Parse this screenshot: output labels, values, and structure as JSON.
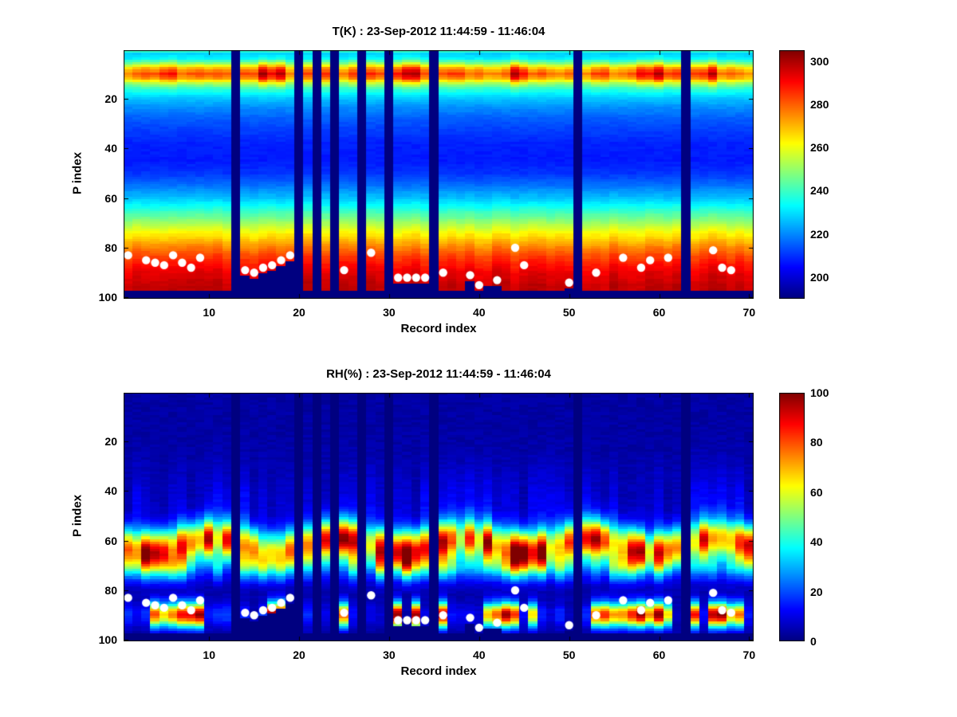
{
  "figure": {
    "background": "#ffffff",
    "text_color": "#000000",
    "marker_color": "#ffffff"
  },
  "chart_data": [
    {
      "type": "heatmap",
      "variable": "temperature",
      "title": "T(K) : 23-Sep-2012 11:44:59 - 11:46:04",
      "xlabel": "Record index",
      "ylabel": "P index",
      "x_range": [
        1,
        70
      ],
      "y_range": [
        1,
        100
      ],
      "y_axis_direction": "reversed",
      "xticks": [
        10,
        20,
        30,
        40,
        50,
        60,
        70
      ],
      "yticks": [
        20,
        40,
        60,
        80,
        100
      ],
      "colormap": "jet",
      "clim": [
        190,
        305
      ],
      "colorbar_ticks": [
        200,
        220,
        240,
        260,
        280,
        300
      ],
      "grid": false,
      "missing_records": [
        13,
        20,
        22,
        24,
        27,
        30,
        35,
        51,
        63
      ],
      "surface_markers": [
        [
          1,
          83
        ],
        [
          3,
          85
        ],
        [
          4,
          86
        ],
        [
          5,
          87
        ],
        [
          6,
          83
        ],
        [
          7,
          86
        ],
        [
          8,
          88
        ],
        [
          9,
          84
        ],
        [
          14,
          89
        ],
        [
          15,
          90
        ],
        [
          16,
          88
        ],
        [
          17,
          87
        ],
        [
          18,
          85
        ],
        [
          19,
          83
        ],
        [
          25,
          89
        ],
        [
          28,
          82
        ],
        [
          31,
          92
        ],
        [
          32,
          92
        ],
        [
          33,
          92
        ],
        [
          34,
          92
        ],
        [
          36,
          90
        ],
        [
          39,
          91
        ],
        [
          40,
          95
        ],
        [
          42,
          93
        ],
        [
          44,
          80
        ],
        [
          45,
          87
        ],
        [
          50,
          94
        ],
        [
          53,
          90
        ],
        [
          56,
          84
        ],
        [
          58,
          88
        ],
        [
          59,
          85
        ],
        [
          61,
          84
        ],
        [
          66,
          81
        ],
        [
          67,
          88
        ],
        [
          68,
          89
        ]
      ],
      "surface_default_cutoff": 97,
      "surface_cutoff_overrides": {
        "14": 91,
        "15": 92,
        "16": 90,
        "17": 89,
        "18": 87,
        "19": 85,
        "31": 94,
        "32": 94,
        "33": 94,
        "34": 94,
        "39": 93,
        "41": 95,
        "42": 95,
        "50": 96
      },
      "profile": [
        [
          1,
          238
        ],
        [
          2,
          228
        ],
        [
          4,
          232
        ],
        [
          6,
          248
        ],
        [
          8,
          268
        ],
        [
          10,
          280
        ],
        [
          12,
          272
        ],
        [
          14,
          252
        ],
        [
          16,
          240
        ],
        [
          18,
          232
        ],
        [
          20,
          227
        ],
        [
          24,
          220
        ],
        [
          28,
          215
        ],
        [
          32,
          212
        ],
        [
          38,
          208
        ],
        [
          45,
          207
        ],
        [
          50,
          210
        ],
        [
          55,
          217
        ],
        [
          60,
          226
        ],
        [
          65,
          238
        ],
        [
          70,
          251
        ],
        [
          75,
          264
        ],
        [
          80,
          276
        ],
        [
          85,
          286
        ],
        [
          90,
          293
        ],
        [
          95,
          297
        ],
        [
          100,
          298
        ]
      ],
      "warm_band": {
        "center": 10,
        "sigma": 3.5,
        "amp_range": [
          -6,
          8
        ],
        "extra": 14,
        "records": [
          5,
          6,
          16,
          17,
          18,
          31,
          32,
          33,
          44,
          45,
          58,
          59,
          60,
          66
        ]
      },
      "surface_thermal_noise": {
        "center": 86,
        "sigma": 16,
        "amp": 3
      },
      "cell_noise": 1.2
    },
    {
      "type": "heatmap",
      "variable": "relative_humidity",
      "title": "RH(%) : 23-Sep-2012 11:44:59 - 11:46:04",
      "xlabel": "Record index",
      "ylabel": "P index",
      "x_range": [
        1,
        70
      ],
      "y_range": [
        1,
        100
      ],
      "y_axis_direction": "reversed",
      "xticks": [
        10,
        20,
        30,
        40,
        50,
        60,
        70
      ],
      "yticks": [
        20,
        40,
        60,
        80,
        100
      ],
      "colormap": "jet",
      "clim": [
        0,
        100
      ],
      "colorbar_ticks": [
        0,
        20,
        40,
        60,
        80,
        100
      ],
      "grid": false,
      "missing_records": [
        13,
        20,
        22,
        24,
        27,
        30,
        35,
        51,
        63
      ],
      "surface_markers": [
        [
          1,
          83
        ],
        [
          3,
          85
        ],
        [
          4,
          86
        ],
        [
          5,
          87
        ],
        [
          6,
          83
        ],
        [
          7,
          86
        ],
        [
          8,
          88
        ],
        [
          9,
          84
        ],
        [
          14,
          89
        ],
        [
          15,
          90
        ],
        [
          16,
          88
        ],
        [
          17,
          87
        ],
        [
          18,
          85
        ],
        [
          19,
          83
        ],
        [
          25,
          89
        ],
        [
          28,
          82
        ],
        [
          31,
          92
        ],
        [
          32,
          92
        ],
        [
          33,
          92
        ],
        [
          34,
          92
        ],
        [
          36,
          90
        ],
        [
          39,
          91
        ],
        [
          40,
          95
        ],
        [
          42,
          93
        ],
        [
          44,
          80
        ],
        [
          45,
          87
        ],
        [
          50,
          94
        ],
        [
          53,
          90
        ],
        [
          56,
          84
        ],
        [
          58,
          88
        ],
        [
          59,
          85
        ],
        [
          61,
          84
        ],
        [
          66,
          81
        ],
        [
          67,
          88
        ],
        [
          68,
          89
        ]
      ],
      "surface_default_cutoff": 97,
      "surface_cutoff_overrides": {
        "14": 91,
        "15": 92,
        "16": 90,
        "17": 89,
        "18": 87,
        "19": 85,
        "31": 94,
        "32": 94,
        "33": 94,
        "34": 94,
        "39": 93,
        "41": 95,
        "42": 95,
        "50": 96
      },
      "base_rh": 2,
      "upper_texture": {
        "center": 46,
        "sigma": 11,
        "amp_max": 10
      },
      "mid_band": {
        "center": 62,
        "center_wobble": 2.5,
        "sigma": 5.5,
        "amp_range": [
          48,
          95
        ]
      },
      "shoulder_band": {
        "center": 71,
        "sigma": 4,
        "amp_range": [
          5,
          38
        ]
      },
      "surface_band": {
        "center": 90,
        "sigma": 3.5,
        "amp_range": [
          60,
          100
        ],
        "dry_amp_max": 15,
        "records": [
          4,
          5,
          6,
          7,
          8,
          9,
          17,
          18,
          25,
          31,
          33,
          36,
          41,
          42,
          43,
          44,
          46,
          53,
          54,
          55,
          56,
          57,
          58,
          59,
          60,
          61,
          64,
          66,
          67,
          68,
          69
        ]
      }
    }
  ]
}
